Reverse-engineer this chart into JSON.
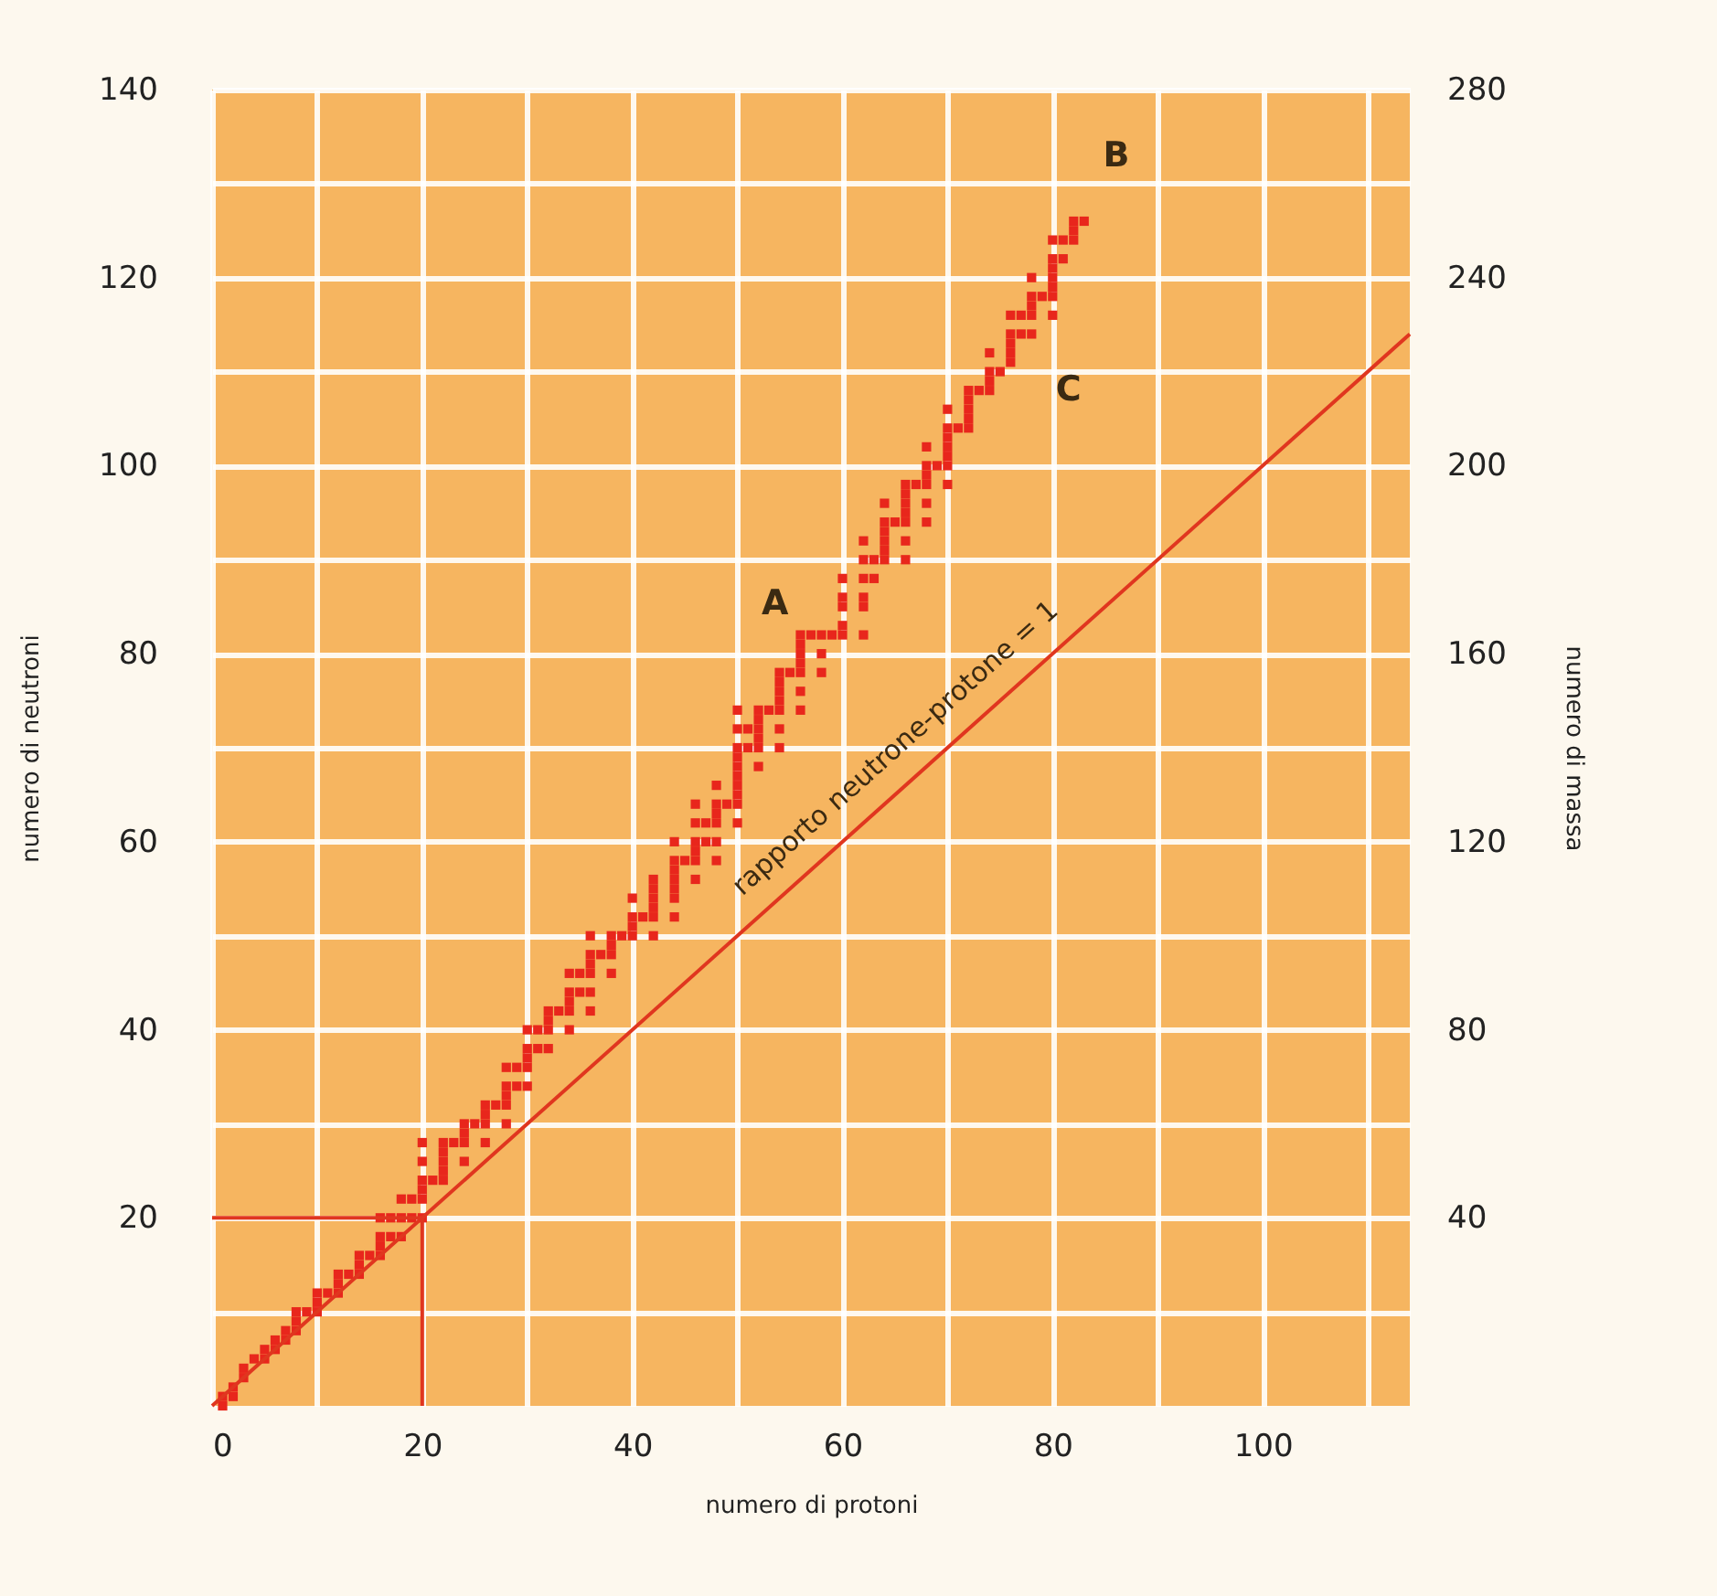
{
  "chart_data": {
    "type": "scatter",
    "xlabel": "numero di protoni",
    "ylabel": "numero di neutroni",
    "y2label": "numero di massa",
    "xlim": [
      0,
      114
    ],
    "ylim": [
      0,
      140
    ],
    "y2lim": [
      0,
      280
    ],
    "xticks": [
      0,
      {
        "value": 10,
        "label": null
      },
      20,
      {
        "value": 30,
        "label": null
      },
      40,
      {
        "value": 50,
        "label": null
      },
      60,
      {
        "value": 70,
        "label": null
      },
      80,
      {
        "value": 90,
        "label": null
      },
      100,
      {
        "value": 110,
        "label": null
      }
    ],
    "yticks": [
      {
        "value": 10,
        "label": null
      },
      20,
      {
        "value": 30,
        "label": null
      },
      40,
      {
        "value": 50,
        "label": null
      },
      60,
      {
        "value": 70,
        "label": null
      },
      80,
      {
        "value": 90,
        "label": null
      },
      100,
      {
        "value": 110,
        "label": null
      },
      120,
      {
        "value": 130,
        "label": null
      },
      140
    ],
    "y2ticks": [
      40,
      80,
      120,
      160,
      200,
      240,
      280
    ],
    "grid": true,
    "line_style": "solid",
    "annotations": [
      "rapporto neutrone-protone = 1",
      "A",
      "B",
      "C"
    ],
    "series": [
      {
        "marker": "square",
        "color": "#e8261c",
        "x": [
          1,
          1,
          2,
          2,
          3,
          3,
          4,
          5,
          5,
          6,
          6,
          7,
          7,
          8,
          8,
          8,
          9,
          10,
          10,
          10,
          11,
          12,
          12,
          12,
          13,
          14,
          14,
          14,
          15,
          16,
          16,
          16,
          16,
          17,
          17,
          18,
          18,
          18,
          19,
          19,
          20,
          20,
          20,
          20,
          20,
          20,
          21,
          22,
          22,
          22,
          22,
          22,
          23,
          24,
          24,
          24,
          24,
          25,
          26,
          26,
          26,
          26,
          27,
          28,
          28,
          28,
          28,
          28,
          29,
          29,
          30,
          30,
          30,
          30,
          30,
          31,
          31,
          32,
          32,
          32,
          32,
          33,
          34,
          34,
          34,
          34,
          34,
          35,
          35,
          36,
          36,
          36,
          36,
          36,
          36,
          37,
          38,
          38,
          38,
          38,
          39,
          40,
          40,
          40,
          40,
          41,
          42,
          42,
          42,
          42,
          42,
          42,
          44,
          44,
          44,
          44,
          44,
          44,
          44,
          45,
          46,
          46,
          46,
          46,
          46,
          46,
          47,
          47,
          48,
          48,
          48,
          48,
          48,
          48,
          49,
          50,
          50,
          50,
          50,
          50,
          50,
          50,
          50,
          50,
          50,
          51,
          51,
          52,
          52,
          52,
          52,
          52,
          52,
          53,
          54,
          54,
          54,
          54,
          54,
          54,
          54,
          55,
          56,
          56,
          56,
          56,
          56,
          56,
          56,
          57,
          58,
          58,
          58,
          59,
          60,
          60,
          60,
          60,
          60,
          62,
          62,
          62,
          62,
          62,
          62,
          63,
          63,
          64,
          64,
          64,
          64,
          64,
          64,
          65,
          66,
          66,
          66,
          66,
          66,
          66,
          66,
          67,
          68,
          68,
          68,
          68,
          68,
          68,
          69,
          70,
          70,
          70,
          70,
          70,
          70,
          70,
          71,
          72,
          72,
          72,
          72,
          72,
          73,
          74,
          74,
          74,
          74,
          75,
          76,
          76,
          76,
          76,
          76,
          77,
          77,
          78,
          78,
          78,
          78,
          78,
          79,
          80,
          80,
          80,
          80,
          80,
          80,
          80,
          81,
          81,
          82,
          82,
          82,
          83
        ],
        "values": [
          0,
          1,
          1,
          2,
          3,
          4,
          5,
          5,
          6,
          6,
          7,
          7,
          8,
          8,
          9,
          10,
          10,
          10,
          11,
          12,
          12,
          12,
          13,
          14,
          14,
          14,
          15,
          16,
          16,
          16,
          17,
          18,
          20,
          18,
          20,
          18,
          20,
          22,
          20,
          22,
          20,
          22,
          23,
          24,
          26,
          28,
          24,
          24,
          25,
          26,
          27,
          28,
          28,
          26,
          28,
          29,
          30,
          30,
          28,
          30,
          31,
          32,
          32,
          30,
          32,
          33,
          34,
          36,
          34,
          36,
          34,
          36,
          37,
          38,
          40,
          38,
          40,
          38,
          40,
          41,
          42,
          42,
          40,
          42,
          43,
          44,
          46,
          44,
          46,
          42,
          44,
          46,
          47,
          48,
          50,
          48,
          46,
          48,
          49,
          50,
          50,
          50,
          51,
          52,
          54,
          52,
          50,
          52,
          53,
          54,
          55,
          56,
          52,
          54,
          55,
          56,
          57,
          58,
          60,
          58,
          56,
          58,
          59,
          60,
          62,
          64,
          60,
          62,
          58,
          60,
          62,
          63,
          64,
          66,
          64,
          62,
          64,
          65,
          66,
          67,
          68,
          69,
          70,
          72,
          74,
          70,
          72,
          68,
          70,
          71,
          72,
          73,
          74,
          74,
          70,
          72,
          74,
          75,
          76,
          77,
          78,
          78,
          74,
          76,
          78,
          79,
          80,
          81,
          82,
          82,
          78,
          80,
          82,
          82,
          82,
          83,
          85,
          86,
          88,
          82,
          85,
          86,
          88,
          90,
          92,
          88,
          90,
          90,
          91,
          92,
          93,
          94,
          96,
          94,
          90,
          92,
          94,
          95,
          96,
          97,
          98,
          98,
          94,
          96,
          98,
          99,
          100,
          102,
          100,
          98,
          100,
          101,
          102,
          103,
          104,
          106,
          104,
          104,
          105,
          106,
          107,
          108,
          108,
          108,
          109,
          110,
          112,
          110,
          111,
          112,
          113,
          114,
          116,
          114,
          116,
          114,
          116,
          117,
          118,
          120,
          118,
          116,
          118,
          119,
          120,
          121,
          122,
          124,
          122,
          124,
          124,
          125,
          126,
          126
        ]
      },
      {
        "type": "line",
        "color": "#e0361f",
        "x": [
          0,
          114
        ],
        "values": [
          0,
          114
        ]
      },
      {
        "type": "line",
        "color": "#e0361f",
        "x": [
          0,
          20
        ],
        "values": [
          20,
          20
        ]
      },
      {
        "type": "line",
        "color": "#e0361f",
        "x": [
          20,
          20
        ],
        "values": [
          0,
          20
        ]
      }
    ]
  }
}
